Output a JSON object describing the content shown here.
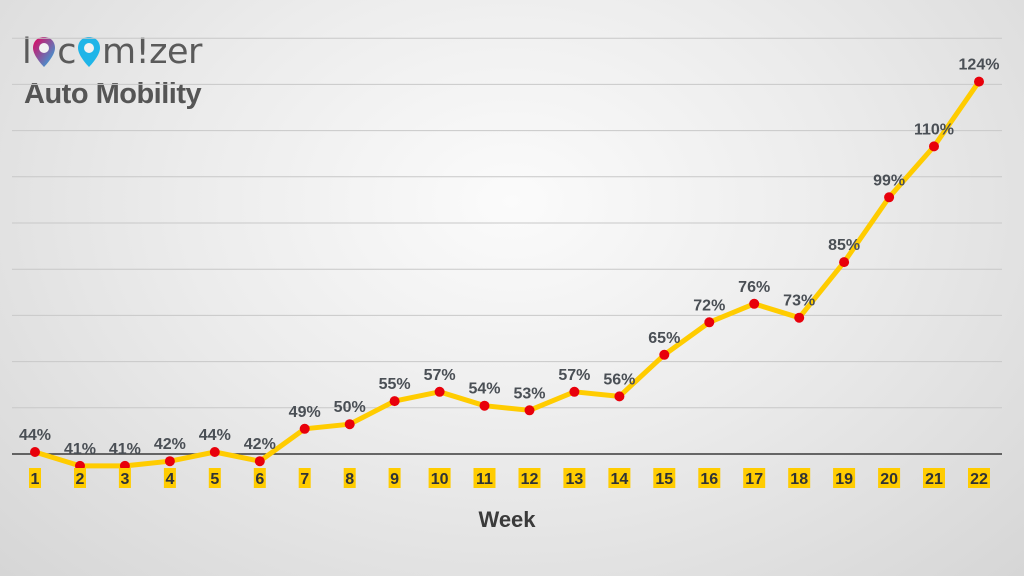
{
  "brand": {
    "logo_letters": [
      "l",
      "c",
      "m",
      "!",
      "z",
      "e",
      "r"
    ],
    "logo_text": "locomizer",
    "logo_icon": "map-pin-icon",
    "subtitle": "Auto Mobility"
  },
  "colors": {
    "line": "#ffcc00",
    "marker": "#e8000b",
    "tick_highlight": "#ffcc00",
    "gridline": "#c8c8c8",
    "axis": "#3a3a3a",
    "logo_pin_top": "#e6005c",
    "logo_pin_bottom": "#1fb5e8"
  },
  "chart_data": {
    "type": "line",
    "title": "",
    "xlabel": "Week",
    "ylabel": "",
    "categories": [
      "1",
      "2",
      "3",
      "4",
      "5",
      "6",
      "7",
      "8",
      "9",
      "10",
      "11",
      "12",
      "13",
      "14",
      "15",
      "16",
      "17",
      "18",
      "19",
      "20",
      "21",
      "22"
    ],
    "values": [
      44,
      41,
      41,
      42,
      44,
      42,
      49,
      50,
      55,
      57,
      54,
      53,
      57,
      56,
      65,
      72,
      76,
      73,
      85,
      99,
      110,
      124
    ],
    "labels": [
      "44%",
      "41%",
      "41%",
      "42%",
      "44%",
      "42%",
      "49%",
      "50%",
      "55%",
      "57%",
      "54%",
      "53%",
      "57%",
      "56%",
      "65%",
      "72%",
      "76%",
      "73%",
      "85%",
      "99%",
      "110%",
      "124%"
    ],
    "grid": true,
    "legend": "none",
    "ylim": [
      40,
      130
    ]
  }
}
